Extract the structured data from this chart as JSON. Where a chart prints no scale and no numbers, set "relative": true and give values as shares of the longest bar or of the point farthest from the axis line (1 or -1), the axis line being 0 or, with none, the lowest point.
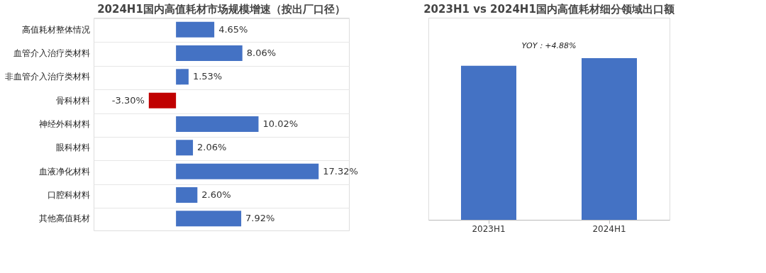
{
  "chart_data": [
    {
      "type": "bar",
      "orientation": "horizontal",
      "title": "2024H1国内高值耗材市场规模增速（按出厂口径）",
      "categories": [
        "高值耗材整体情况",
        "血管介入治疗类材料",
        "非血管介入治疗类材料",
        "骨科材料",
        "神经外科材料",
        "眼科材料",
        "血液净化材料",
        "口腔科材料",
        "其他高值耗材"
      ],
      "values": [
        4.65,
        8.06,
        1.53,
        -3.3,
        10.02,
        2.06,
        17.32,
        2.6,
        7.92
      ],
      "colors": [
        "#4472c4",
        "#4472c4",
        "#4472c4",
        "#c00000",
        "#4472c4",
        "#4472c4",
        "#4472c4",
        "#4472c4",
        "#4472c4"
      ],
      "value_labels": [
        "4.65%",
        "8.06%",
        "1.53%",
        "-3.30%",
        "10.02%",
        "2.06%",
        "17.32%",
        "2.60%",
        "7.92%"
      ],
      "xlim": [
        -10,
        21
      ],
      "tick_labels": "y",
      "grid": "y"
    },
    {
      "type": "bar",
      "title": "2023H1 vs 2024H1国内高值耗材细分领域出口额",
      "categories": [
        "2023H1",
        "2024H1"
      ],
      "values": [
        0.953,
        1
      ],
      "color": "#4472c4",
      "relative": true,
      "annotations": [
        "YOY：+4.88%"
      ]
    }
  ]
}
